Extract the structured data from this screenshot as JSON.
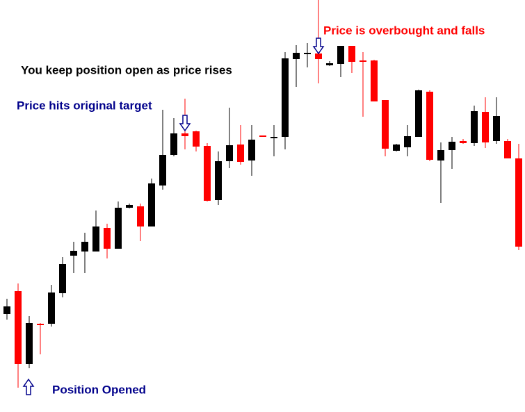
{
  "chart_data": {
    "type": "candlestick",
    "ylim": [
      0,
      593
    ],
    "up_color": "#000000",
    "down_color": "#ff0000",
    "annotations": [
      "Price is overbought and falls",
      "You keep position open as price rises",
      "Price hits original target",
      "Position Opened"
    ],
    "open": [
      141,
      174,
      69,
      127,
      127,
      171,
      225,
      231,
      231,
      265,
      235,
      294,
      296,
      267,
      326,
      370,
      401,
      404,
      383,
      305,
      361,
      385,
      362,
      398,
      394,
      396,
      508,
      516,
      516,
      499,
      501,
      527,
      506,
      506,
      449,
      376,
      381,
      396,
      461,
      362,
      377,
      390,
      387,
      432,
      390,
      390,
      365
    ],
    "high": [
      163,
      185,
      138,
      128,
      183,
      223,
      245,
      258,
      290,
      271,
      303,
      300,
      300,
      336,
      435,
      423,
      451,
      405,
      387,
      375,
      438,
      413,
      413,
      398,
      413,
      518,
      528,
      531,
      593,
      505,
      527,
      527,
      518,
      507,
      449,
      386,
      413,
      464,
      463,
      388,
      396,
      393,
      441,
      453,
      453,
      393,
      386
    ],
    "low": [
      133,
      35,
      63,
      83,
      123,
      165,
      200,
      200,
      233,
      221,
      235,
      293,
      246,
      267,
      320,
      368,
      378,
      375,
      303,
      298,
      351,
      356,
      340,
      396,
      368,
      378,
      468,
      496,
      473,
      498,
      482,
      488,
      425,
      447,
      368,
      375,
      368,
      396,
      361,
      301,
      350,
      386,
      383,
      380,
      386,
      365,
      233
    ],
    "close": [
      152,
      69,
      128,
      125,
      172,
      213,
      232,
      245,
      267,
      235,
      294,
      298,
      267,
      329,
      370,
      401,
      397,
      382,
      304,
      361,
      384,
      360,
      392,
      396,
      396,
      509,
      517,
      517,
      508,
      502,
      527,
      504,
      504,
      447,
      379,
      385,
      397,
      463,
      363,
      377,
      389,
      387,
      433,
      388,
      426,
      365,
      238
    ]
  }
}
